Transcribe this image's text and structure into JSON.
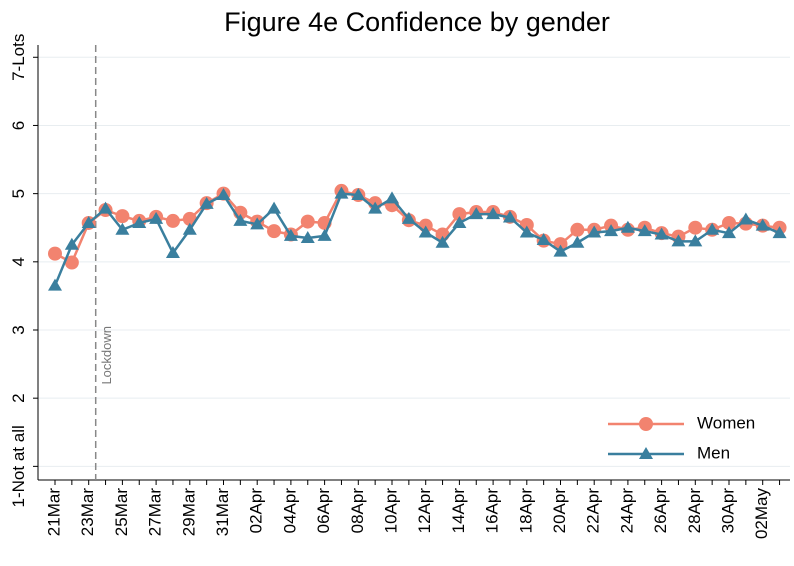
{
  "chart_data": {
    "type": "line",
    "title": "Figure 4e Confidence by gender",
    "categories": [
      "21Mar",
      null,
      "23Mar",
      null,
      "25Mar",
      null,
      "27Mar",
      null,
      "29Mar",
      null,
      "31Mar",
      null,
      "02Apr",
      null,
      "04Apr",
      null,
      "06Apr",
      null,
      "08Apr",
      null,
      "10Apr",
      null,
      "12Apr",
      null,
      "14Apr",
      null,
      "16Apr",
      null,
      "18Apr",
      null,
      "20Apr",
      null,
      "22Apr",
      null,
      "24Apr",
      null,
      "26Apr",
      null,
      "28Apr",
      null,
      "30Apr",
      null,
      "02May",
      null
    ],
    "series": [
      {
        "name": "Women",
        "color": "#f2836f",
        "marker": "circle",
        "values": [
          4.12,
          3.99,
          4.57,
          4.76,
          4.67,
          4.6,
          4.66,
          4.6,
          4.63,
          4.86,
          5.0,
          4.72,
          4.59,
          4.45,
          4.4,
          4.59,
          4.57,
          5.04,
          4.98,
          4.86,
          4.83,
          4.61,
          4.53,
          4.4,
          4.7,
          4.73,
          4.73,
          4.66,
          4.54,
          4.31,
          4.26,
          4.47,
          4.47,
          4.53,
          4.47,
          4.5,
          4.42,
          4.37,
          4.5,
          4.47,
          4.57,
          4.56,
          4.53,
          4.5
        ]
      },
      {
        "name": "Men",
        "color": "#3a7f9e",
        "marker": "triangle",
        "values": [
          3.65,
          4.25,
          4.57,
          4.78,
          4.47,
          4.57,
          4.63,
          4.13,
          4.47,
          4.85,
          4.98,
          4.6,
          4.55,
          4.78,
          4.38,
          4.35,
          4.38,
          5.0,
          4.98,
          4.78,
          4.93,
          4.63,
          4.43,
          4.28,
          4.57,
          4.7,
          4.7,
          4.65,
          4.43,
          4.32,
          4.15,
          4.28,
          4.43,
          4.45,
          4.5,
          4.45,
          4.4,
          4.3,
          4.3,
          4.47,
          4.42,
          4.62,
          4.53,
          4.42
        ]
      }
    ],
    "ylim": [
      0.8,
      7.18
    ],
    "yticks": [
      {
        "value": 1,
        "label": "1-Not at all"
      },
      2,
      3,
      4,
      5,
      6,
      {
        "value": 7,
        "label": "7-Lots"
      }
    ],
    "grid": true,
    "legend": "bottom-right",
    "annotation": {
      "text": "Lockdown",
      "at": "23Mar"
    }
  }
}
